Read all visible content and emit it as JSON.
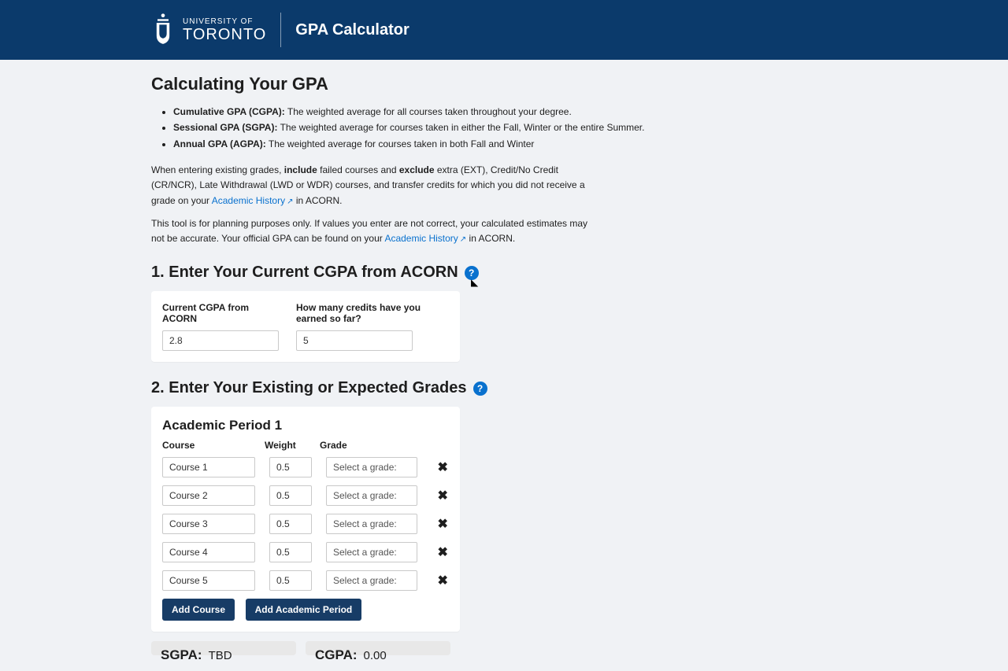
{
  "header": {
    "univ_line1": "UNIVERSITY OF",
    "univ_line2": "TORONTO",
    "app_title": "GPA Calculator"
  },
  "intro": {
    "title": "Calculating Your GPA",
    "defs": [
      {
        "term": "Cumulative GPA (CGPA):",
        "desc": " The weighted average for all courses taken throughout your degree."
      },
      {
        "term": "Sessional GPA (SGPA):",
        "desc": " The weighted average for courses taken in either the Fall, Winter or the entire Summer."
      },
      {
        "term": "Annual GPA (AGPA):",
        "desc": " The weighted average for courses taken in both Fall and Winter"
      }
    ],
    "para1_a": "When entering existing grades, ",
    "para1_b": "include",
    "para1_c": " failed courses and ",
    "para1_d": "exclude",
    "para1_e": " extra (EXT), Credit/No Credit (CR/NCR), Late Withdrawal (LWD or WDR) courses, and transfer credits for which you did not receive a grade on your ",
    "link1": "Academic History",
    "para1_f": " in ACORN.",
    "para2_a": "This tool is for planning purposes only. If values you enter are not correct, your calculated estimates may not be accurate. Your official GPA can be found on your ",
    "link2": "Academic History",
    "para2_b": " in ACORN."
  },
  "step1": {
    "title": "1. Enter Your Current CGPA from ACORN",
    "label_cgpa": "Current CGPA from ACORN",
    "label_credits": "How many credits have you earned so far?",
    "value_cgpa": "2.8",
    "value_credits": "5"
  },
  "step2": {
    "title": "2. Enter Your Existing or Expected Grades",
    "period_title": "Academic Period 1",
    "head_course": "Course",
    "head_weight": "Weight",
    "head_grade": "Grade",
    "grade_placeholder": "Select a grade:",
    "rows": [
      {
        "course": "Course 1",
        "weight": "0.5"
      },
      {
        "course": "Course 2",
        "weight": "0.5"
      },
      {
        "course": "Course 3",
        "weight": "0.5"
      },
      {
        "course": "Course 4",
        "weight": "0.5"
      },
      {
        "course": "Course 5",
        "weight": "0.5"
      }
    ],
    "btn_add_course": "Add Course",
    "btn_add_period": "Add Academic Period"
  },
  "results": {
    "sgpa_label": "SGPA:",
    "sgpa_value": "TBD",
    "cgpa_label": "CGPA:",
    "cgpa_value": "0.00"
  }
}
